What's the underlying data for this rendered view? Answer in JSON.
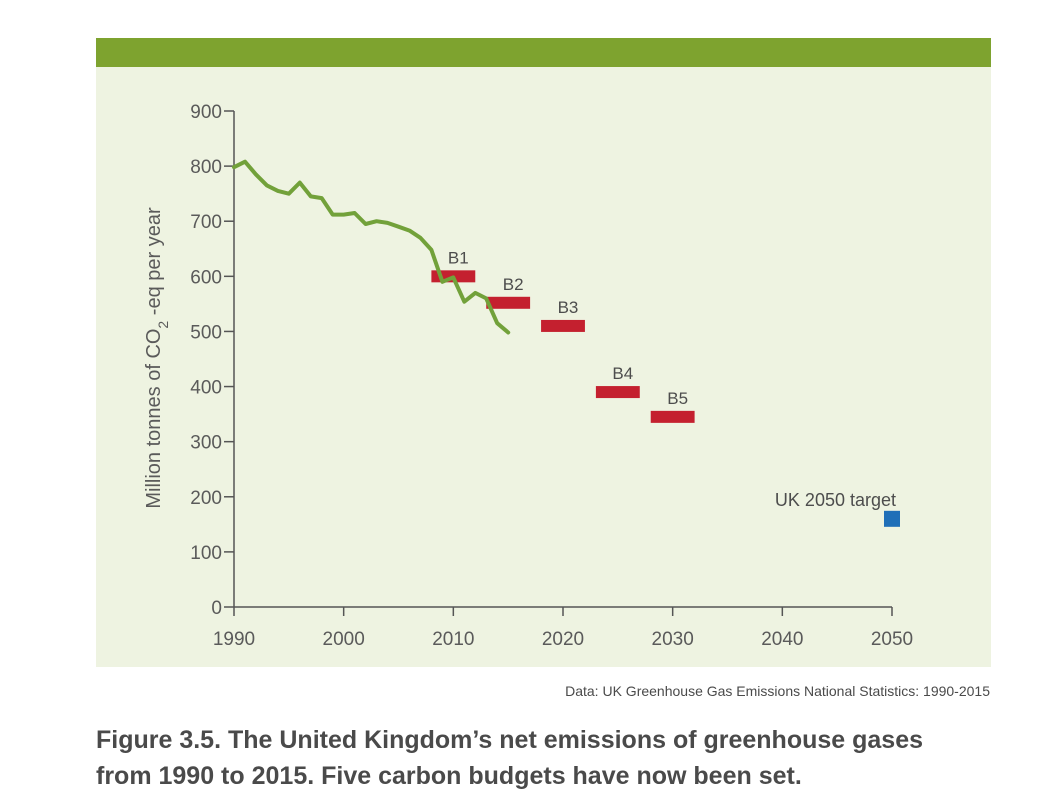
{
  "colors": {
    "header_band": "#7ea32f",
    "panel": "#eef3e1",
    "emissions_line": "#72a13a",
    "budget": "#c4202f",
    "target": "#1f6fb8",
    "axis": "#555555"
  },
  "chart_data": {
    "type": "line",
    "title": "",
    "xlabel": "",
    "ylabel": "Million tonnes of CO2-eq per year",
    "ylabel_parts": {
      "before": "Million tonnes of CO",
      "subscript": "2",
      "after": " -eq per year"
    },
    "xlim": [
      1990,
      2050
    ],
    "ylim": [
      0,
      900
    ],
    "x_ticks": [
      1990,
      2000,
      2010,
      2020,
      2030,
      2040,
      2050
    ],
    "y_ticks": [
      0,
      100,
      200,
      300,
      400,
      500,
      600,
      700,
      800,
      900
    ],
    "grid": false,
    "series": [
      {
        "name": "Net emissions",
        "x": [
          1990,
          1991,
          1992,
          1993,
          1994,
          1995,
          1996,
          1997,
          1998,
          1999,
          2000,
          2001,
          2002,
          2003,
          2004,
          2005,
          2006,
          2007,
          2008,
          2009,
          2010,
          2011,
          2012,
          2013,
          2014,
          2015
        ],
        "y": [
          798,
          808,
          785,
          765,
          755,
          750,
          770,
          745,
          742,
          712,
          712,
          715,
          695,
          700,
          697,
          690,
          683,
          670,
          648,
          590,
          598,
          554,
          570,
          560,
          515,
          498
        ]
      }
    ],
    "budgets": [
      {
        "label": "B1",
        "start": 2008,
        "end": 2012,
        "value": 600
      },
      {
        "label": "B2",
        "start": 2013,
        "end": 2017,
        "value": 552
      },
      {
        "label": "B3",
        "start": 2018,
        "end": 2022,
        "value": 510
      },
      {
        "label": "B4",
        "start": 2023,
        "end": 2027,
        "value": 390
      },
      {
        "label": "B5",
        "start": 2028,
        "end": 2032,
        "value": 345
      }
    ],
    "target": {
      "label": "UK 2050 target",
      "x": 2050,
      "y": 160
    }
  },
  "source_note": "Data: UK Greenhouse Gas Emissions National Statistics: 1990-2015",
  "caption": {
    "line1": "Figure 3.5.  The United Kingdom’s net emissions of greenhouse gases",
    "line2": "from 1990 to 2015. Five carbon budgets have now been set."
  }
}
